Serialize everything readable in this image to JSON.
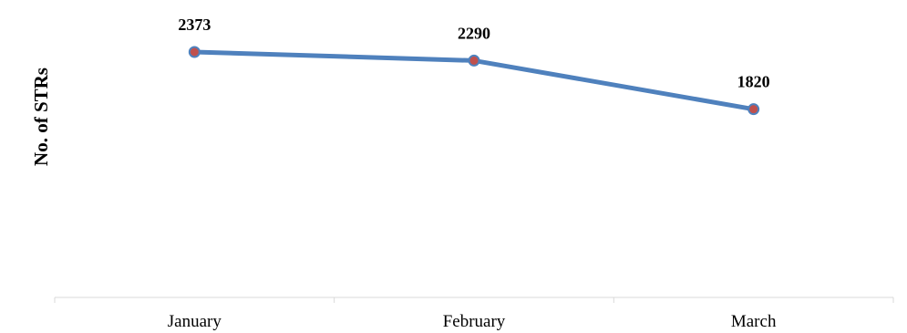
{
  "chart_data": {
    "type": "line",
    "categories": [
      "January",
      "February",
      "March"
    ],
    "series": [
      {
        "values": [
          2373,
          2290,
          1820
        ],
        "data_labels": [
          "2373",
          "2290",
          "1820"
        ],
        "line_color": "#4f81bd",
        "marker_color": "#c0504d"
      }
    ],
    "ylabel": "No. of STRs",
    "xlabel": "",
    "title": "",
    "grid": false,
    "legend": "none"
  }
}
